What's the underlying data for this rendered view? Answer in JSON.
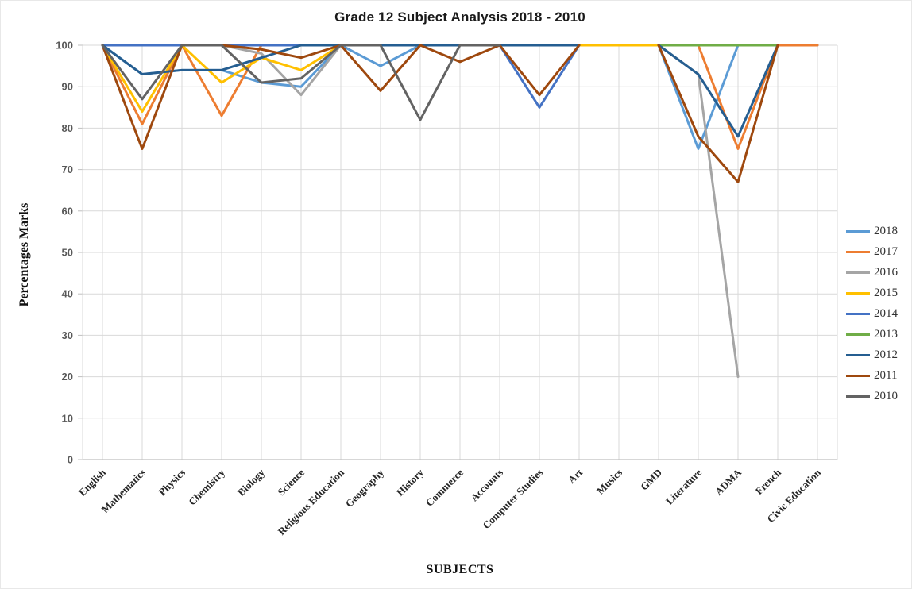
{
  "chart_data": {
    "type": "line",
    "title": "Grade 12 Subject Analysis 2018 - 2010",
    "xlabel": "SUBJECTS",
    "ylabel": "Percentages Marks",
    "ylim": [
      0,
      100
    ],
    "ytick_step": 10,
    "yticks": [
      0,
      10,
      20,
      30,
      40,
      50,
      60,
      70,
      80,
      90,
      100
    ],
    "grid": true,
    "legend_position": "right",
    "categories": [
      "English",
      "Mathematics",
      "Physics",
      "Chemistry",
      "Biology",
      "Science",
      "Religious Education",
      "Geography",
      "History",
      "Commerce",
      "Accounts",
      "Computer Studies",
      "Art",
      "Musics",
      "GMD",
      "Literature",
      "ADMA",
      "French",
      "Civic Education"
    ],
    "series": [
      {
        "name": "2018",
        "color": "#5B9BD5",
        "values": [
          100,
          93,
          94,
          94,
          91,
          90,
          100,
          95,
          100,
          100,
          100,
          100,
          100,
          100,
          100,
          75,
          100,
          100,
          100
        ]
      },
      {
        "name": "2017",
        "color": "#ED7D31",
        "values": [
          100,
          81,
          100,
          83,
          100,
          100,
          100,
          100,
          100,
          100,
          100,
          100,
          100,
          100,
          100,
          100,
          75,
          100,
          100
        ]
      },
      {
        "name": "2016",
        "color": "#A5A5A5",
        "values": [
          100,
          100,
          100,
          100,
          98,
          88,
          100,
          100,
          100,
          100,
          100,
          100,
          100,
          100,
          100,
          93,
          20,
          null,
          null
        ]
      },
      {
        "name": "2015",
        "color": "#FFC000",
        "values": [
          100,
          84,
          100,
          91,
          97,
          94,
          100,
          100,
          100,
          100,
          100,
          100,
          100,
          100,
          100,
          null,
          null,
          null,
          null
        ]
      },
      {
        "name": "2014",
        "color": "#4472C4",
        "values": [
          100,
          100,
          100,
          100,
          100,
          100,
          100,
          100,
          100,
          100,
          100,
          85,
          100,
          null,
          null,
          null,
          null,
          null,
          null
        ]
      },
      {
        "name": "2013",
        "color": "#70AD47",
        "values": [
          null,
          null,
          null,
          null,
          null,
          null,
          null,
          null,
          null,
          null,
          null,
          null,
          null,
          null,
          100,
          100,
          100,
          100,
          null
        ]
      },
      {
        "name": "2012",
        "color": "#255E91",
        "values": [
          100,
          93,
          94,
          94,
          97,
          100,
          100,
          100,
          100,
          100,
          100,
          100,
          100,
          null,
          100,
          93,
          78,
          100,
          null
        ]
      },
      {
        "name": "2011",
        "color": "#9E480E",
        "values": [
          100,
          75,
          100,
          100,
          99,
          97,
          100,
          89,
          100,
          96,
          100,
          88,
          100,
          null,
          100,
          78,
          67,
          100,
          null
        ]
      },
      {
        "name": "2010",
        "color": "#636363",
        "values": [
          100,
          87,
          100,
          100,
          91,
          92,
          100,
          100,
          82,
          100,
          100,
          null,
          null,
          null,
          null,
          null,
          null,
          null,
          null
        ]
      }
    ]
  }
}
